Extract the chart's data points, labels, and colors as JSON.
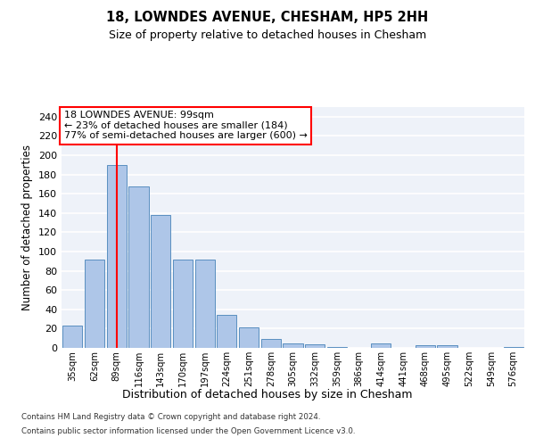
{
  "title1": "18, LOWNDES AVENUE, CHESHAM, HP5 2HH",
  "title2": "Size of property relative to detached houses in Chesham",
  "xlabel": "Distribution of detached houses by size in Chesham",
  "ylabel": "Number of detached properties",
  "footnote1": "Contains HM Land Registry data © Crown copyright and database right 2024.",
  "footnote2": "Contains public sector information licensed under the Open Government Licence v3.0.",
  "categories": [
    "35sqm",
    "62sqm",
    "89sqm",
    "116sqm",
    "143sqm",
    "170sqm",
    "197sqm",
    "224sqm",
    "251sqm",
    "278sqm",
    "305sqm",
    "332sqm",
    "359sqm",
    "386sqm",
    "414sqm",
    "441sqm",
    "468sqm",
    "495sqm",
    "522sqm",
    "549sqm",
    "576sqm"
  ],
  "values": [
    23,
    92,
    190,
    168,
    138,
    92,
    92,
    34,
    21,
    9,
    5,
    4,
    1,
    0,
    5,
    0,
    3,
    3,
    0,
    0,
    1
  ],
  "bar_color": "#aec6e8",
  "bar_edge_color": "#5a8fc0",
  "vline_x": 2,
  "vline_color": "red",
  "annotation_title": "18 LOWNDES AVENUE: 99sqm",
  "annotation_line2": "← 23% of detached houses are smaller (184)",
  "annotation_line3": "77% of semi-detached houses are larger (600) →",
  "annotation_box_color": "white",
  "annotation_box_edge": "red",
  "ylim": [
    0,
    250
  ],
  "yticks": [
    0,
    20,
    40,
    60,
    80,
    100,
    120,
    140,
    160,
    180,
    200,
    220,
    240
  ],
  "bg_color": "#eef2f9",
  "fig_bg": "white",
  "grid_color": "white"
}
